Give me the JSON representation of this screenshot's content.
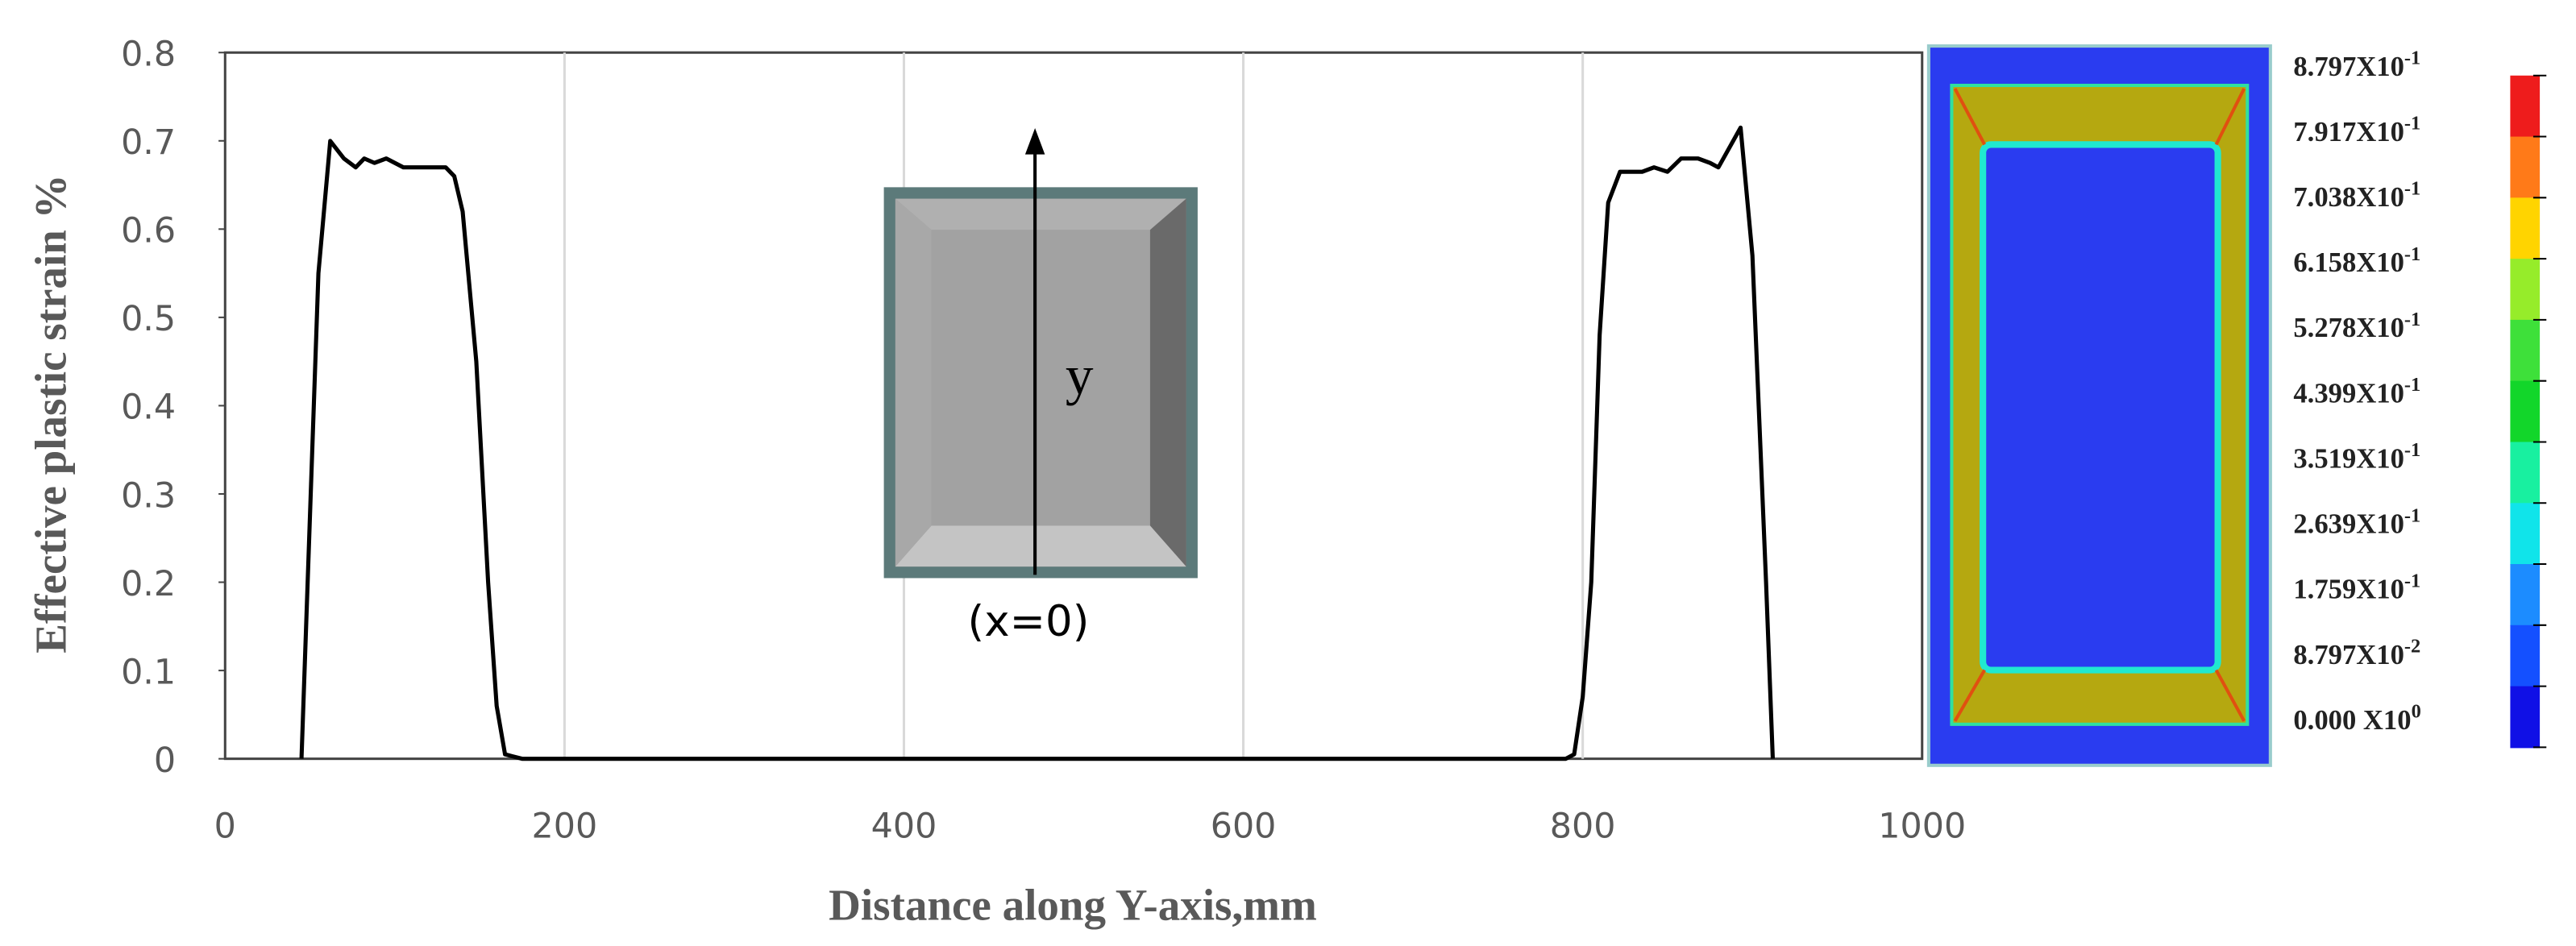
{
  "chart_data": {
    "type": "line",
    "x_label": "Distance along Y-axis,mm",
    "y_label": "Effective plastic strain %",
    "x": [
      45,
      55,
      62,
      70,
      77,
      82,
      88,
      95,
      100,
      105,
      120,
      130,
      135,
      140,
      148,
      155,
      160,
      165,
      175,
      790,
      795,
      800,
      805,
      810,
      815,
      822,
      835,
      842,
      850,
      858,
      868,
      875,
      880,
      893,
      900,
      908,
      912
    ],
    "values": [
      0,
      0.55,
      0.7,
      0.68,
      0.67,
      0.68,
      0.675,
      0.68,
      0.675,
      0.67,
      0.67,
      0.67,
      0.66,
      0.62,
      0.45,
      0.2,
      0.06,
      0.005,
      0,
      0,
      0.005,
      0.07,
      0.2,
      0.48,
      0.63,
      0.665,
      0.665,
      0.67,
      0.665,
      0.68,
      0.68,
      0.675,
      0.67,
      0.715,
      0.57,
      0.2,
      0
    ],
    "color": "#000000",
    "xlim": [
      0,
      1000
    ],
    "xticks": [
      0,
      200,
      400,
      600,
      800,
      1000
    ],
    "ylim": [
      0,
      0.8
    ],
    "yticks": [
      0,
      0.1,
      0.2,
      0.3,
      0.4,
      0.5,
      0.6,
      0.7,
      0.8
    ],
    "grid": "x",
    "inset_labels": [
      "y",
      "(x=0)"
    ],
    "colorbar": {
      "labels": [
        {
          "base": "8.797X10",
          "exp": "-1"
        },
        {
          "base": "7.917X10",
          "exp": "-1"
        },
        {
          "base": "7.038X10",
          "exp": "-1"
        },
        {
          "base": "6.158X10",
          "exp": "-1"
        },
        {
          "base": "5.278X10",
          "exp": "-1"
        },
        {
          "base": "4.399X10",
          "exp": "-1"
        },
        {
          "base": "3.519X10",
          "exp": "-1"
        },
        {
          "base": "2.639X10",
          "exp": "-1"
        },
        {
          "base": "1.759X10",
          "exp": "-1"
        },
        {
          "base": "8.797X10",
          "exp": "-2"
        },
        {
          "base": "0.000 X10",
          "exp": "0"
        }
      ],
      "colors": [
        "#ee1c1c",
        "#ff7a18",
        "#ffd400",
        "#96ec2a",
        "#3ee03a",
        "#12d62a",
        "#18f0a0",
        "#10e4ea",
        "#1c8cff",
        "#1450ff",
        "#1010e6"
      ]
    }
  }
}
